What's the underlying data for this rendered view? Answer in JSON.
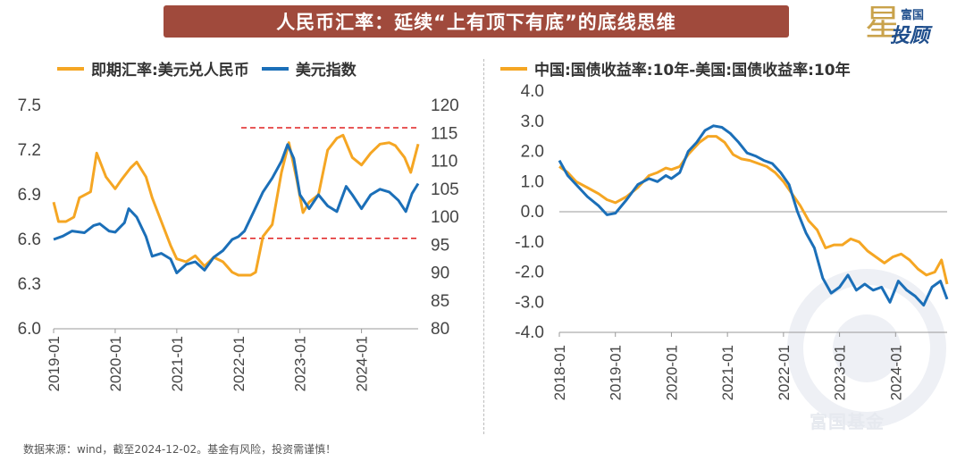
{
  "header": {
    "title": "人民币汇率：延续“上有顶下有底”的底线思维",
    "brand_small": "富国",
    "brand_big": "投顾",
    "brand_star": "星"
  },
  "footer": {
    "source": "数据来源：wind，截至2024-12-02。基金有风险，投资需谨慎！"
  },
  "watermark": {
    "text": "富国基金"
  },
  "colors": {
    "yellow": "#f5a623",
    "blue": "#1b6fb8",
    "red_dash": "#e02020",
    "title_bg": "#a04a3c"
  },
  "chart_data": [
    {
      "type": "line",
      "legend": [
        "即期汇率:美元兑人民币",
        "美元指数"
      ],
      "xlabel": "",
      "ylabel": "",
      "x_ticks": [
        "2019-01",
        "2020-01",
        "2021-01",
        "2022-01",
        "2023-01",
        "2024-01"
      ],
      "y_left_ticks": [
        "7.5",
        "7.2",
        "6.9",
        "6.6",
        "6.3",
        "6.0"
      ],
      "y_left_lim": [
        6.0,
        7.5
      ],
      "y_right_ticks": [
        "120",
        "115",
        "110",
        "105",
        "100",
        "95",
        "90",
        "85",
        "80"
      ],
      "y_right_lim": [
        80,
        120
      ],
      "x_range": [
        2019.0,
        2024.92
      ],
      "reference_lines_right_axis": [
        116.0,
        96.2
      ],
      "series": [
        {
          "name": "即期汇率:美元兑人民币",
          "axis": "left",
          "color": "#f5a623",
          "x": [
            2019.0,
            2019.08,
            2019.2,
            2019.33,
            2019.42,
            2019.6,
            2019.7,
            2019.85,
            2020.0,
            2020.1,
            2020.25,
            2020.35,
            2020.5,
            2020.6,
            2020.75,
            2020.9,
            2021.0,
            2021.15,
            2021.3,
            2021.45,
            2021.6,
            2021.75,
            2021.9,
            2022.0,
            2022.2,
            2022.28,
            2022.4,
            2022.55,
            2022.7,
            2022.82,
            2022.95,
            2023.05,
            2023.15,
            2023.3,
            2023.45,
            2023.6,
            2023.7,
            2023.85,
            2024.0,
            2024.15,
            2024.3,
            2024.45,
            2024.55,
            2024.7,
            2024.8,
            2024.92
          ],
          "y": [
            6.85,
            6.72,
            6.72,
            6.75,
            6.88,
            6.92,
            7.18,
            7.02,
            6.94,
            7.0,
            7.08,
            7.12,
            7.02,
            6.88,
            6.72,
            6.56,
            6.47,
            6.45,
            6.49,
            6.42,
            6.48,
            6.45,
            6.38,
            6.36,
            6.36,
            6.38,
            6.62,
            6.7,
            7.05,
            7.25,
            7.0,
            6.78,
            6.85,
            6.9,
            7.2,
            7.28,
            7.3,
            7.15,
            7.1,
            7.18,
            7.24,
            7.25,
            7.23,
            7.15,
            7.05,
            7.24
          ]
        },
        {
          "name": "美元指数",
          "axis": "right",
          "color": "#1b6fb8",
          "x": [
            2019.0,
            2019.15,
            2019.3,
            2019.5,
            2019.65,
            2019.75,
            2019.9,
            2020.0,
            2020.15,
            2020.22,
            2020.35,
            2020.5,
            2020.6,
            2020.75,
            2020.9,
            2021.0,
            2021.15,
            2021.3,
            2021.45,
            2021.6,
            2021.75,
            2021.9,
            2022.0,
            2022.1,
            2022.25,
            2022.4,
            2022.55,
            2022.7,
            2022.8,
            2022.9,
            2023.0,
            2023.15,
            2023.3,
            2023.45,
            2023.6,
            2023.75,
            2023.85,
            2024.0,
            2024.15,
            2024.3,
            2024.45,
            2024.6,
            2024.72,
            2024.82,
            2024.92
          ],
          "y": [
            96.0,
            96.6,
            97.5,
            97.2,
            98.5,
            98.8,
            97.5,
            97.3,
            99.0,
            101.5,
            100.0,
            96.5,
            93.0,
            93.5,
            92.5,
            90.0,
            91.5,
            92.0,
            90.5,
            92.8,
            94.0,
            96.0,
            96.5,
            97.5,
            101.0,
            104.5,
            107.0,
            110.0,
            113.0,
            110.5,
            104.0,
            101.5,
            104.0,
            102.0,
            101.0,
            105.5,
            104.0,
            101.5,
            104.0,
            105.0,
            104.5,
            103.0,
            101.0,
            104.2,
            106.0
          ]
        }
      ]
    },
    {
      "type": "line",
      "legend": [
        "中国:国债收益率:10年-美国:国债收益率:10年"
      ],
      "xlabel": "",
      "ylabel": "",
      "x_ticks": [
        "2018-01",
        "2019-01",
        "2020-01",
        "2021-01",
        "2022-01",
        "2023-01",
        "2024-01"
      ],
      "y_ticks": [
        "4.0",
        "3.0",
        "2.0",
        "1.0",
        "0.0",
        "-1.0",
        "-2.0",
        "-3.0",
        "-4.0"
      ],
      "ylim": [
        -4.0,
        4.0
      ],
      "x_range": [
        2018.0,
        2024.92
      ],
      "series": [
        {
          "name": "中国:国债收益率:10年-美国:国债收益率:10年",
          "color": "#f5a623",
          "x": [
            2018.0,
            2018.15,
            2018.3,
            2018.5,
            2018.7,
            2018.85,
            2019.0,
            2019.2,
            2019.4,
            2019.6,
            2019.75,
            2019.9,
            2020.0,
            2020.15,
            2020.3,
            2020.5,
            2020.65,
            2020.8,
            2020.95,
            2021.1,
            2021.25,
            2021.4,
            2021.55,
            2021.7,
            2021.85,
            2022.0,
            2022.15,
            2022.3,
            2022.45,
            2022.6,
            2022.75,
            2022.9,
            2023.05,
            2023.2,
            2023.35,
            2023.5,
            2023.65,
            2023.8,
            2023.95,
            2024.1,
            2024.25,
            2024.4,
            2024.55,
            2024.7,
            2024.82,
            2024.92
          ],
          "y": [
            1.5,
            1.3,
            1.0,
            0.8,
            0.6,
            0.4,
            0.3,
            0.5,
            0.8,
            1.2,
            1.3,
            1.45,
            1.4,
            1.5,
            1.9,
            2.3,
            2.5,
            2.5,
            2.3,
            1.9,
            1.75,
            1.7,
            1.6,
            1.5,
            1.3,
            1.0,
            0.6,
            0.2,
            -0.3,
            -0.6,
            -1.2,
            -1.1,
            -1.1,
            -0.9,
            -1.0,
            -1.3,
            -1.5,
            -1.7,
            -1.5,
            -1.4,
            -1.6,
            -1.9,
            -2.1,
            -2.0,
            -1.6,
            -2.4
          ]
        },
        {
          "name": "",
          "color": "#1b6fb8",
          "x": [
            2018.0,
            2018.15,
            2018.3,
            2018.5,
            2018.7,
            2018.85,
            2019.0,
            2019.2,
            2019.4,
            2019.6,
            2019.75,
            2019.9,
            2020.0,
            2020.15,
            2020.3,
            2020.45,
            2020.6,
            2020.75,
            2020.9,
            2021.05,
            2021.2,
            2021.35,
            2021.5,
            2021.65,
            2021.8,
            2021.95,
            2022.1,
            2022.25,
            2022.4,
            2022.55,
            2022.7,
            2022.85,
            2023.0,
            2023.15,
            2023.3,
            2023.45,
            2023.6,
            2023.75,
            2023.9,
            2024.05,
            2024.2,
            2024.35,
            2024.5,
            2024.65,
            2024.8,
            2024.92
          ],
          "y": [
            1.7,
            1.2,
            0.9,
            0.5,
            0.2,
            -0.1,
            -0.05,
            0.4,
            0.9,
            1.1,
            1.0,
            1.2,
            1.1,
            1.3,
            2.0,
            2.3,
            2.7,
            2.85,
            2.8,
            2.6,
            2.3,
            1.95,
            1.85,
            1.7,
            1.6,
            1.3,
            0.9,
            0.0,
            -0.7,
            -1.2,
            -2.2,
            -2.7,
            -2.5,
            -2.1,
            -2.6,
            -2.4,
            -2.6,
            -2.5,
            -3.0,
            -2.3,
            -2.6,
            -2.8,
            -3.1,
            -2.5,
            -2.3,
            -2.9
          ]
        }
      ]
    }
  ]
}
